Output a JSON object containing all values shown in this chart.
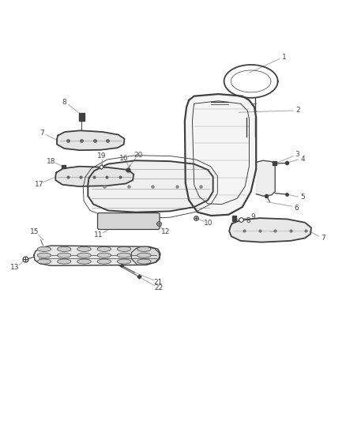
{
  "bg_color": "#ffffff",
  "line_color": "#404040",
  "label_color": "#444444",
  "leader_color": "#999999"
}
